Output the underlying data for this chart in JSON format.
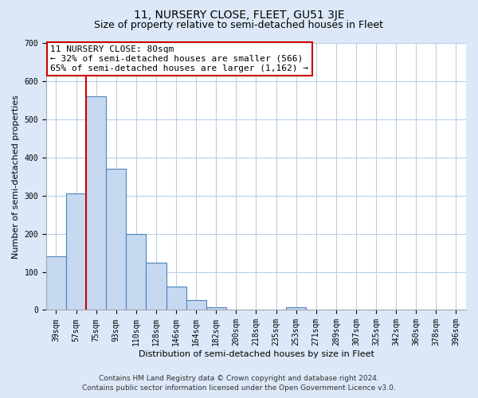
{
  "title": "11, NURSERY CLOSE, FLEET, GU51 3JE",
  "subtitle": "Size of property relative to semi-detached houses in Fleet",
  "xlabel": "Distribution of semi-detached houses by size in Fleet",
  "ylabel": "Number of semi-detached properties",
  "bar_labels": [
    "39sqm",
    "57sqm",
    "75sqm",
    "93sqm",
    "110sqm",
    "128sqm",
    "146sqm",
    "164sqm",
    "182sqm",
    "200sqm",
    "218sqm",
    "235sqm",
    "253sqm",
    "271sqm",
    "289sqm",
    "307sqm",
    "325sqm",
    "342sqm",
    "360sqm",
    "378sqm",
    "396sqm"
  ],
  "bar_values": [
    140,
    305,
    560,
    370,
    200,
    125,
    62,
    26,
    8,
    0,
    0,
    0,
    8,
    0,
    0,
    0,
    0,
    0,
    0,
    0,
    0
  ],
  "bar_color": "#c6d9f0",
  "bar_edge_color": "#4f81bd",
  "marker_label": "11 NURSERY CLOSE: 80sqm",
  "annotation_line1": "← 32% of semi-detached houses are smaller (566)",
  "annotation_line2": "65% of semi-detached houses are larger (1,162) →",
  "ylim": [
    0,
    700
  ],
  "yticks": [
    0,
    100,
    200,
    300,
    400,
    500,
    600,
    700
  ],
  "figsize": [
    6.0,
    5.0
  ],
  "dpi": 100,
  "footer_line1": "Contains HM Land Registry data © Crown copyright and database right 2024.",
  "footer_line2": "Contains public sector information licensed under the Open Government Licence v3.0.",
  "background_color": "#dce8f8",
  "plot_bg_color": "#ffffff",
  "grid_color": "#b8cfe8",
  "red_line_color": "#cc0000",
  "title_fontsize": 10,
  "subtitle_fontsize": 9,
  "axis_label_fontsize": 8,
  "tick_fontsize": 7,
  "annotation_fontsize": 8,
  "footer_fontsize": 6.5
}
